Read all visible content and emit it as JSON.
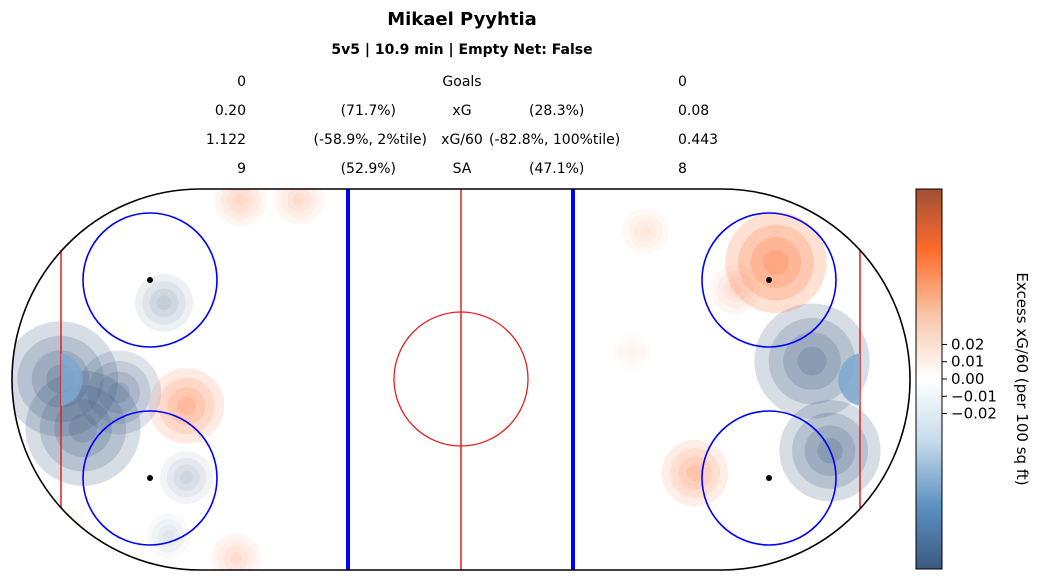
{
  "title": "Mikael Pyyhtia",
  "subtitle": "5v5 | 10.9 min | Empty Net: False",
  "stats": [
    {
      "left": "0",
      "left_pct": "",
      "label": "Goals",
      "right_pct": "",
      "right": "0"
    },
    {
      "left": "0.20",
      "left_pct": "(71.7%)",
      "label": "xG",
      "right_pct": "(28.3%)",
      "right": "0.08"
    },
    {
      "left": "1.122",
      "left_pct": "(-58.9%, 2%tile)",
      "label": "xG/60",
      "right_pct": "(-82.8%, 100%tile)",
      "right": "0.443"
    },
    {
      "left": "9",
      "left_pct": "(52.9%)",
      "label": "SA",
      "right_pct": "(47.1%)",
      "right": "8"
    }
  ],
  "chart_data": {
    "type": "heatmap",
    "colorbar": {
      "label": "Excess xG/60 (per 100 sq ft)",
      "ticks": [
        "0.02",
        "0.01",
        "0.00",
        "−0.01",
        "−0.02"
      ],
      "tick_values": [
        0.02,
        0.01,
        0.0,
        -0.01,
        -0.02
      ],
      "colors": {
        "low": "#3b5a80",
        "mid": "#ffffff",
        "high": "#ff6b2b",
        "top": "#a05035"
      }
    },
    "rink_colors": {
      "boards": "#000000",
      "goal_lines": "#e02020",
      "blue_lines": "#0000ff",
      "center_line": "#e02020",
      "faceoff": "#0000ff"
    },
    "hotspots_left": [
      {
        "x": -84,
        "y": -11,
        "value": -0.06
      },
      {
        "x": -89,
        "y": 0,
        "value": -0.05
      },
      {
        "x": -76,
        "y": -3,
        "value": -0.03
      },
      {
        "x": -66,
        "y": 17,
        "value": -0.015
      },
      {
        "x": -61,
        "y": -6,
        "value": 0.025
      },
      {
        "x": -61,
        "y": -22,
        "value": -0.012
      },
      {
        "x": -65,
        "y": -35,
        "value": -0.007
      },
      {
        "x": -49,
        "y": 40,
        "value": 0.012
      },
      {
        "x": -36,
        "y": 40,
        "value": 0.01
      },
      {
        "x": -50,
        "y": -40,
        "value": 0.01
      },
      {
        "x": -88,
        "y": -34,
        "value": 0.008
      }
    ],
    "hotspots_right": [
      {
        "x": 78,
        "y": 4,
        "value": -0.07
      },
      {
        "x": 82,
        "y": -16,
        "value": -0.04
      },
      {
        "x": 70,
        "y": 26,
        "value": 0.04
      },
      {
        "x": 61,
        "y": 20,
        "value": 0.01
      },
      {
        "x": 52,
        "y": -21,
        "value": 0.02
      },
      {
        "x": 41,
        "y": 33,
        "value": 0.008
      },
      {
        "x": 38,
        "y": 6,
        "value": 0.004
      }
    ]
  }
}
